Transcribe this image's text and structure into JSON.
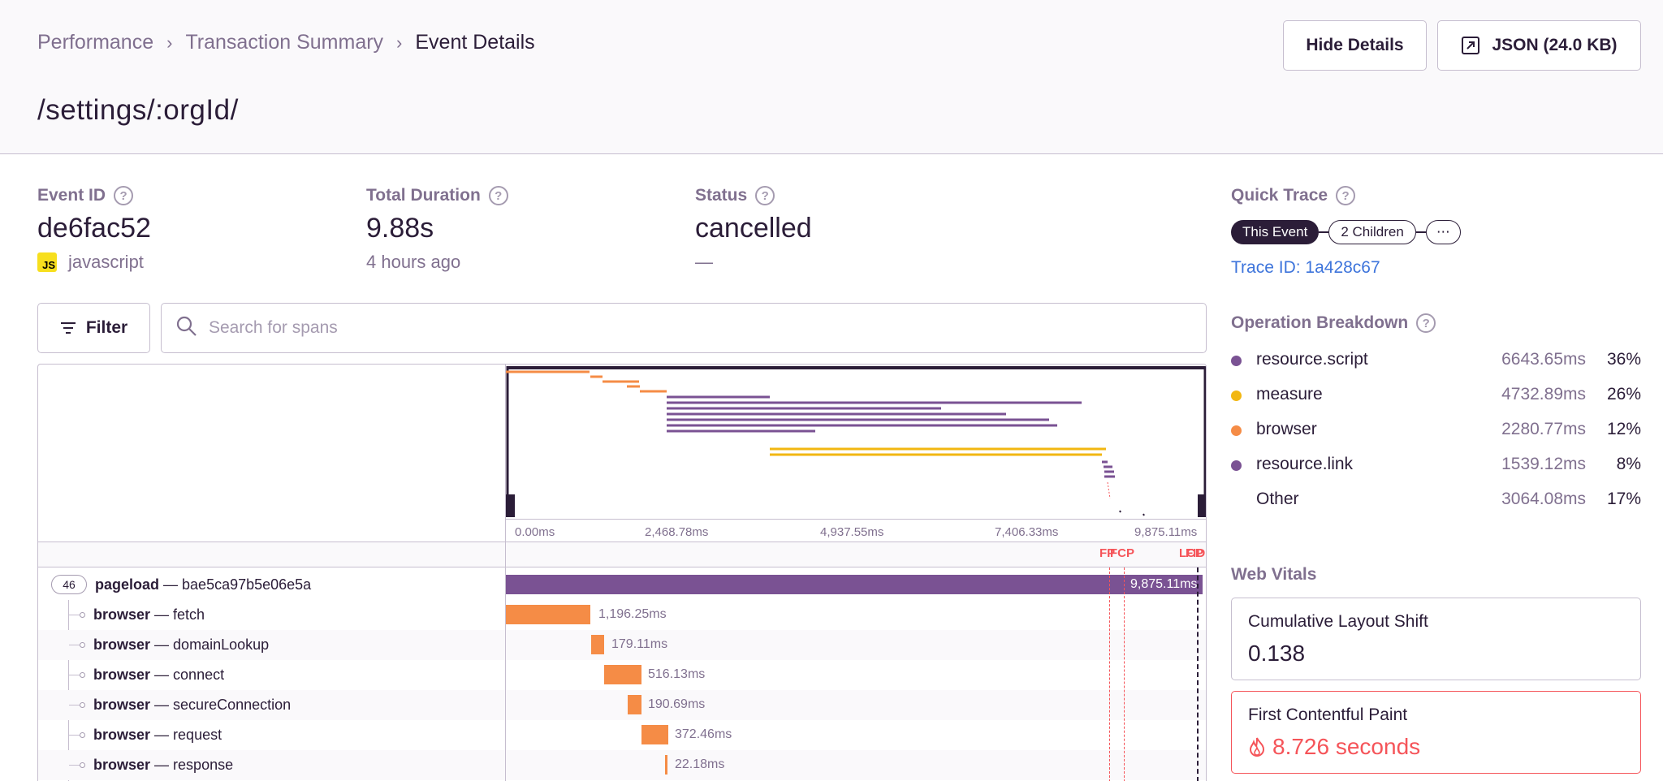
{
  "breadcrumb": {
    "items": [
      "Performance",
      "Transaction Summary",
      "Event Details"
    ],
    "separator": "›"
  },
  "page_title": "/settings/:orgId/",
  "header_buttons": {
    "hide_details": "Hide Details",
    "json": "JSON (24.0 KB)"
  },
  "meta": {
    "event_id": {
      "label": "Event ID",
      "value": "de6fac52",
      "sub": "javascript",
      "platform_badge": "JS"
    },
    "total_duration": {
      "label": "Total Duration",
      "value": "9.88s",
      "sub": "4 hours ago"
    },
    "status": {
      "label": "Status",
      "value": "cancelled",
      "sub": "—"
    }
  },
  "filter": {
    "label": "Filter",
    "search_placeholder": "Search for spans",
    "search_value": ""
  },
  "timeline": {
    "ticks": [
      "0.00ms",
      "2,468.78ms",
      "4,937.55ms",
      "7,406.33ms",
      "9,875.11ms"
    ],
    "vital_markers": [
      "FP",
      "FCP",
      "LCP",
      "FID"
    ]
  },
  "spans": [
    {
      "op": "pageload",
      "desc": "bae5ca97b5e06e5a",
      "duration": "9,875.11ms",
      "children_count": "46",
      "color": "#6c5fc7"
    },
    {
      "op": "browser",
      "desc": "fetch",
      "duration": "1,196.25ms",
      "color": "#f58c46"
    },
    {
      "op": "browser",
      "desc": "domainLookup",
      "duration": "179.11ms",
      "color": "#f58c46"
    },
    {
      "op": "browser",
      "desc": "connect",
      "duration": "516.13ms",
      "color": "#f58c46"
    },
    {
      "op": "browser",
      "desc": "secureConnection",
      "duration": "190.69ms",
      "color": "#f58c46"
    },
    {
      "op": "browser",
      "desc": "request",
      "duration": "372.46ms",
      "color": "#f58c46"
    },
    {
      "op": "browser",
      "desc": "response",
      "duration": "22.18ms",
      "color": "#f58c46"
    }
  ],
  "quick_trace": {
    "label": "Quick Trace",
    "nodes": [
      "This Event",
      "2 Children",
      "⋯"
    ],
    "trace_id": "Trace ID: 1a428c67"
  },
  "operation_breakdown": {
    "label": "Operation Breakdown",
    "rows": [
      {
        "name": "resource.script",
        "ms": "6643.65ms",
        "pct": "36%",
        "color": "#7a5293"
      },
      {
        "name": "measure",
        "ms": "4732.89ms",
        "pct": "26%",
        "color": "#f2b712"
      },
      {
        "name": "browser",
        "ms": "2280.77ms",
        "pct": "12%",
        "color": "#f58c46"
      },
      {
        "name": "resource.link",
        "ms": "1539.12ms",
        "pct": "8%",
        "color": "#7a5293"
      },
      {
        "name": "Other",
        "ms": "3064.08ms",
        "pct": "17%",
        "color": ""
      }
    ]
  },
  "web_vitals": {
    "label": "Web Vitals",
    "cards": [
      {
        "name": "Cumulative Layout Shift",
        "value": "0.138",
        "poor": false
      },
      {
        "name": "First Contentful Paint",
        "value": "8.726 seconds",
        "poor": true
      }
    ]
  },
  "colors": {
    "accent": "#2b1d38",
    "link": "#3d74db",
    "error": "#f55459",
    "pageload": "#6c5fc7",
    "browser": "#f58c46",
    "script": "#7a5293",
    "measure": "#f2b712"
  }
}
